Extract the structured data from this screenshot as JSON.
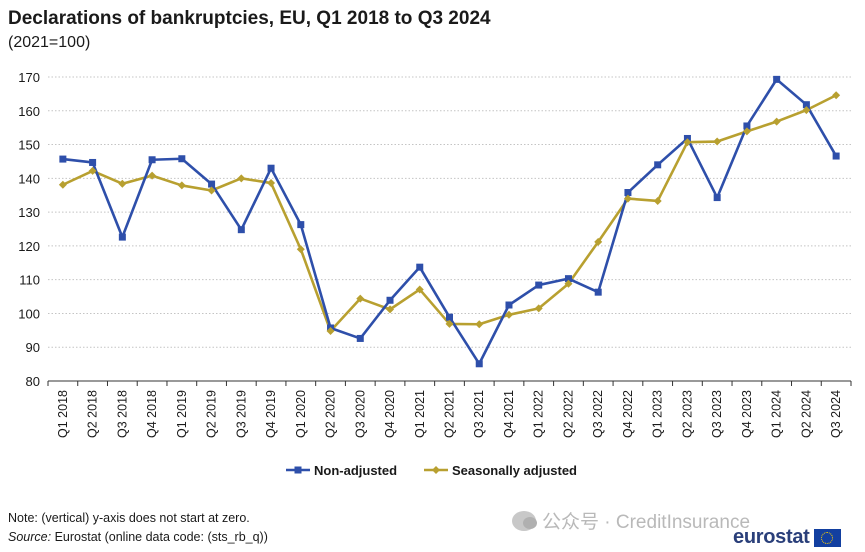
{
  "chart_data": {
    "type": "line",
    "title": "Declarations of bankruptcies, EU, Q1 2018 to Q3 2024",
    "subtitle": "(2021=100)",
    "categories": [
      "Q1 2018",
      "Q2 2018",
      "Q3 2018",
      "Q4 2018",
      "Q1 2019",
      "Q2 2019",
      "Q3 2019",
      "Q4 2019",
      "Q1 2020",
      "Q2 2020",
      "Q3 2020",
      "Q4 2020",
      "Q1 2021",
      "Q2 2021",
      "Q3 2021",
      "Q4 2021",
      "Q1 2022",
      "Q2 2022",
      "Q3 2022",
      "Q4 2022",
      "Q1 2023",
      "Q2 2023",
      "Q3 2023",
      "Q4 2023",
      "Q1 2024",
      "Q2 2024",
      "Q3 2024"
    ],
    "series": [
      {
        "name": "Non-adjusted",
        "color": "#2e4faa",
        "marker": "square",
        "values": [
          145.7,
          144.7,
          122.6,
          145.5,
          145.8,
          138.3,
          124.8,
          143.0,
          126.3,
          95.7,
          92.6,
          103.9,
          113.7,
          98.9,
          85.1,
          102.5,
          108.4,
          110.3,
          106.3,
          135.8,
          144.0,
          151.8,
          134.3,
          155.5,
          169.3,
          161.8,
          146.6
        ]
      },
      {
        "name": "Seasonally adjusted",
        "color": "#b8a030",
        "marker": "diamond",
        "values": [
          138.1,
          142.2,
          138.4,
          140.8,
          137.9,
          136.4,
          140.0,
          138.6,
          119.0,
          94.8,
          104.4,
          101.2,
          107.1,
          96.9,
          96.8,
          99.6,
          101.5,
          108.8,
          121.2,
          134.0,
          133.3,
          150.7,
          150.9,
          153.9,
          156.8,
          160.2,
          164.6
        ]
      }
    ],
    "ylim": [
      80,
      170
    ],
    "yticks": [
      80,
      90,
      100,
      110,
      120,
      130,
      140,
      150,
      160,
      170
    ],
    "xlabel": "",
    "ylabel": "",
    "grid": "horizontal dotted",
    "legend": "bottom-center"
  },
  "footer": {
    "note": "Note: (vertical) y-axis does not start at zero.",
    "source_label": "Source:",
    "source_text": "Eurostat (online data code: (sts_rb_q))"
  },
  "watermark": "公众号 · CreditInsurance",
  "logo": {
    "text": "eurostat"
  }
}
